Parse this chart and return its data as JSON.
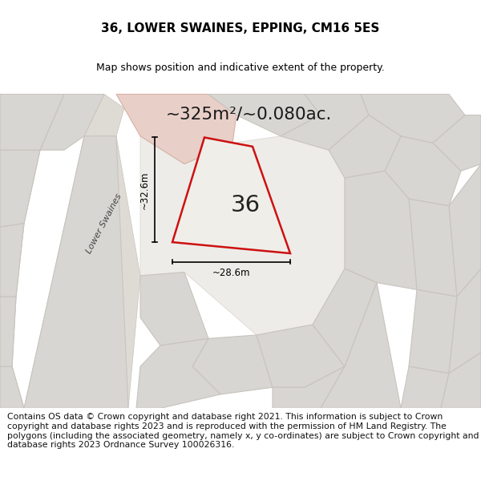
{
  "title": "36, LOWER SWAINES, EPPING, CM16 5ES",
  "subtitle": "Map shows position and indicative extent of the property.",
  "area_text": "~325m²/~0.080ac.",
  "plot_label": "36",
  "dim_vertical": "~32.6m",
  "dim_horizontal": "~28.6m",
  "road_label": "Lower Swaines",
  "footer": "Contains OS data © Crown copyright and database right 2021. This information is subject to Crown copyright and database rights 2023 and is reproduced with the permission of HM Land Registry. The polygons (including the associated geometry, namely x, y co-ordinates) are subject to Crown copyright and database rights 2023 Ordnance Survey 100026316.",
  "bg_color": "#e8e6e2",
  "map_bg": "#e8e6e2",
  "plot_fill_gray": "#d8d6d2",
  "plot_fill_pink": "#e8cfc8",
  "plot_edge_gray": "#c8c4be",
  "plot_edge_pink": "#d8b0a8",
  "property_edge": "#cc1111",
  "property_fill": "#f0eee8",
  "title_fontsize": 11,
  "subtitle_fontsize": 9,
  "footer_fontsize": 7.8
}
